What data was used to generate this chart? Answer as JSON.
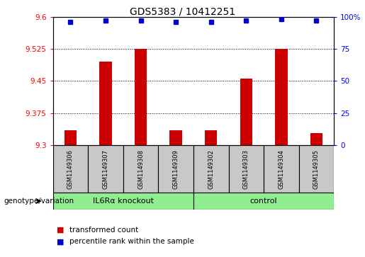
{
  "title": "GDS5383 / 10412251",
  "samples": [
    "GSM1149306",
    "GSM1149307",
    "GSM1149308",
    "GSM1149309",
    "GSM1149302",
    "GSM1149303",
    "GSM1149304",
    "GSM1149305"
  ],
  "bar_values": [
    9.335,
    9.495,
    9.525,
    9.335,
    9.335,
    9.455,
    9.525,
    9.328
  ],
  "percentile_values": [
    96,
    97,
    97,
    96,
    96,
    97,
    98,
    97
  ],
  "ylim_left": [
    9.3,
    9.6
  ],
  "ylim_right": [
    0,
    100
  ],
  "yticks_left": [
    9.3,
    9.375,
    9.45,
    9.525,
    9.6
  ],
  "yticks_right": [
    0,
    25,
    50,
    75,
    100
  ],
  "ytick_labels_left": [
    "9.3",
    "9.375",
    "9.45",
    "9.525",
    "9.6"
  ],
  "ytick_labels_right": [
    "0",
    "25",
    "50",
    "75",
    "100%"
  ],
  "group1_label": "IL6Rα knockout",
  "group2_label": "control",
  "group_color": "#90EE90",
  "sample_box_color": "#C8C8C8",
  "bar_color": "#CC0000",
  "percentile_color": "#0000CC",
  "plot_bg_color": "#FFFFFF",
  "legend_items": [
    {
      "label": "transformed count",
      "color": "#CC0000"
    },
    {
      "label": "percentile rank within the sample",
      "color": "#0000CC"
    }
  ],
  "bar_width": 0.35
}
